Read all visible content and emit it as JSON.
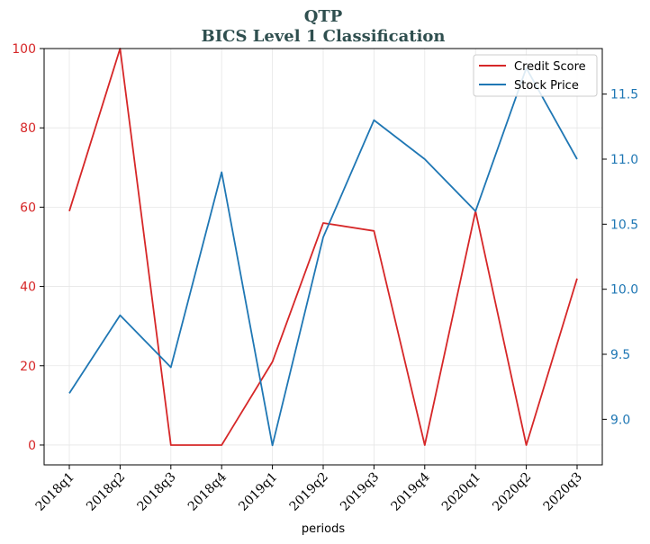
{
  "chart_data": {
    "type": "line",
    "title": "QTP",
    "subtitle": "BICS Level 1 Classification",
    "xlabel": "periods",
    "categories": [
      "2018q1",
      "2018q2",
      "2018q3",
      "2018q4",
      "2019q1",
      "2019q2",
      "2019q3",
      "2019q4",
      "2020q1",
      "2020q2",
      "2020q3"
    ],
    "y_left": {
      "lim": [
        -5,
        100
      ],
      "ticks": [
        "0",
        "20",
        "40",
        "60",
        "80",
        "100"
      ],
      "color": "#d62728"
    },
    "y_right": {
      "lim": [
        8.65,
        11.85
      ],
      "ticks": [
        "9.0",
        "9.5",
        "10.0",
        "10.5",
        "11.0",
        "11.5"
      ],
      "color": "#1f77b4"
    },
    "grid": true,
    "legend_position": "top-right",
    "series": [
      {
        "name": "Credit Score",
        "axis": "left",
        "color": "#d62728",
        "values": [
          59,
          100,
          0,
          0,
          21,
          56,
          54,
          0,
          59,
          0,
          42
        ]
      },
      {
        "name": "Stock Price",
        "axis": "right",
        "color": "#1f77b4",
        "values": [
          9.2,
          9.8,
          9.4,
          10.9,
          8.8,
          10.4,
          11.3,
          11.0,
          10.6,
          11.7,
          11.0
        ]
      }
    ]
  }
}
